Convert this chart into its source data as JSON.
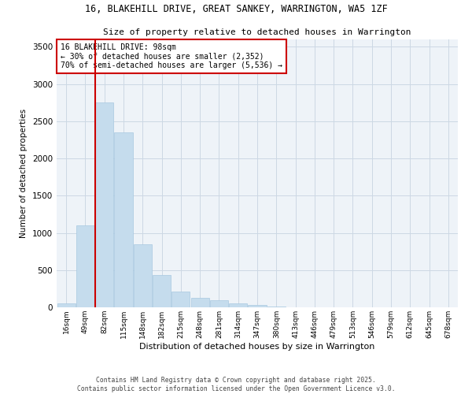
{
  "title1": "16, BLAKEHILL DRIVE, GREAT SANKEY, WARRINGTON, WA5 1ZF",
  "title2": "Size of property relative to detached houses in Warrington",
  "xlabel": "Distribution of detached houses by size in Warrington",
  "ylabel": "Number of detached properties",
  "bar_color": "#c5dced",
  "bar_edge_color": "#a8c8e0",
  "bg_color": "#eef3f8",
  "grid_color": "#ccd8e4",
  "categories": [
    "16sqm",
    "49sqm",
    "82sqm",
    "115sqm",
    "148sqm",
    "182sqm",
    "215sqm",
    "248sqm",
    "281sqm",
    "314sqm",
    "347sqm",
    "380sqm",
    "413sqm",
    "446sqm",
    "479sqm",
    "513sqm",
    "546sqm",
    "579sqm",
    "612sqm",
    "645sqm",
    "678sqm"
  ],
  "values": [
    48,
    1100,
    2750,
    2350,
    850,
    430,
    215,
    130,
    100,
    50,
    30,
    10,
    4,
    2,
    1,
    0,
    0,
    0,
    0,
    0,
    0
  ],
  "ylim": [
    0,
    3600
  ],
  "yticks": [
    0,
    500,
    1000,
    1500,
    2000,
    2500,
    3000,
    3500
  ],
  "vline_x_idx": 2,
  "vline_color": "#cc0000",
  "annotation_text": "16 BLAKEHILL DRIVE: 98sqm\n← 30% of detached houses are smaller (2,352)\n70% of semi-detached houses are larger (5,536) →",
  "annotation_box_edge": "#cc0000",
  "footer1": "Contains HM Land Registry data © Crown copyright and database right 2025.",
  "footer2": "Contains public sector information licensed under the Open Government Licence v3.0."
}
